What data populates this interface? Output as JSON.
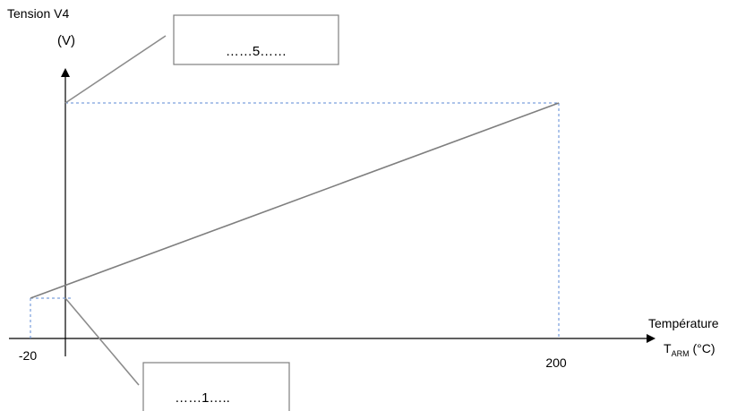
{
  "chart_data": {
    "type": "line",
    "ylabel_line1": "Tension V4",
    "ylabel_line2": "(V)",
    "xlabel_main": "Température",
    "xlabel_symbol": "T",
    "xlabel_subscript": "ARM",
    "xlabel_unit": " (°C)",
    "x_ticks": [
      "-20",
      "200"
    ],
    "series": [
      {
        "x": [
          -20,
          200
        ],
        "y": [
          1,
          5
        ]
      }
    ],
    "annotations": {
      "top_box": "……5……",
      "bottom_box": "……1….."
    },
    "colors": {
      "line": "#7f7f7f",
      "guide": "#5b8ad6",
      "axis": "#000000",
      "box_border": "#7f7f7f"
    }
  }
}
